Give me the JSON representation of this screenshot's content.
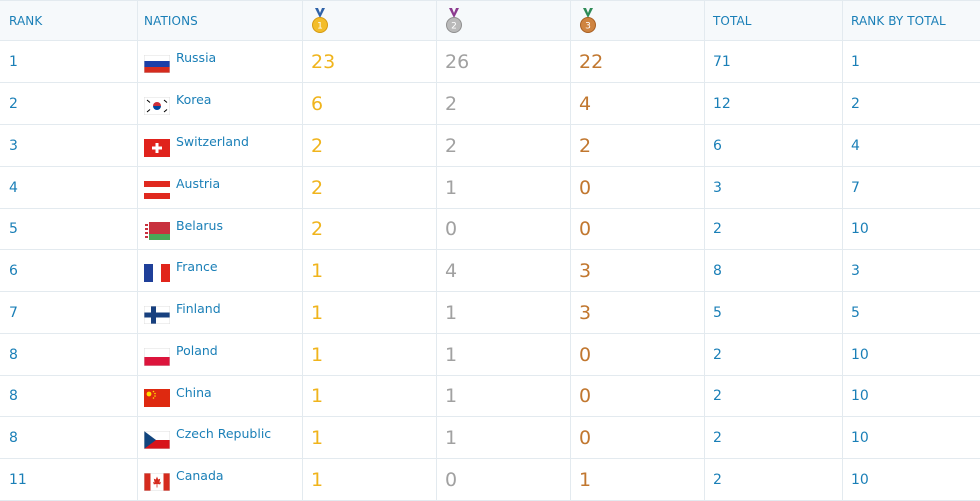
{
  "header": {
    "rank": "RANK",
    "nations": "NATIONS",
    "gold_icon": "gold-medal-icon",
    "gold_number": "1",
    "silver_icon": "silver-medal-icon",
    "silver_number": "2",
    "bronze_icon": "bronze-medal-icon",
    "bronze_number": "3",
    "total": "TOTAL",
    "rank_by_total": "RANK BY TOTAL"
  },
  "colors": {
    "link": "#1a7fb7",
    "gold": "#f0b41c",
    "silver": "#a1a1a1",
    "bronze": "#c1772f",
    "grid": "#e3eaef"
  },
  "rows": [
    {
      "rank": "1",
      "nation": "Russia",
      "flag": "russia-flag-icon",
      "gold": "23",
      "silver": "26",
      "bronze": "22",
      "total": "71",
      "rank_total": "1"
    },
    {
      "rank": "2",
      "nation": "Korea",
      "flag": "korea-flag-icon",
      "gold": "6",
      "silver": "2",
      "bronze": "4",
      "total": "12",
      "rank_total": "2"
    },
    {
      "rank": "3",
      "nation": "Switzerland",
      "flag": "switzerland-flag-icon",
      "gold": "2",
      "silver": "2",
      "bronze": "2",
      "total": "6",
      "rank_total": "4"
    },
    {
      "rank": "4",
      "nation": "Austria",
      "flag": "austria-flag-icon",
      "gold": "2",
      "silver": "1",
      "bronze": "0",
      "total": "3",
      "rank_total": "7"
    },
    {
      "rank": "5",
      "nation": "Belarus",
      "flag": "belarus-flag-icon",
      "gold": "2",
      "silver": "0",
      "bronze": "0",
      "total": "2",
      "rank_total": "10"
    },
    {
      "rank": "6",
      "nation": "France",
      "flag": "france-flag-icon",
      "gold": "1",
      "silver": "4",
      "bronze": "3",
      "total": "8",
      "rank_total": "3"
    },
    {
      "rank": "7",
      "nation": "Finland",
      "flag": "finland-flag-icon",
      "gold": "1",
      "silver": "1",
      "bronze": "3",
      "total": "5",
      "rank_total": "5"
    },
    {
      "rank": "8",
      "nation": "Poland",
      "flag": "poland-flag-icon",
      "gold": "1",
      "silver": "1",
      "bronze": "0",
      "total": "2",
      "rank_total": "10"
    },
    {
      "rank": "8",
      "nation": "China",
      "flag": "china-flag-icon",
      "gold": "1",
      "silver": "1",
      "bronze": "0",
      "total": "2",
      "rank_total": "10"
    },
    {
      "rank": "8",
      "nation": "Czech Republic",
      "flag": "czech-flag-icon",
      "gold": "1",
      "silver": "1",
      "bronze": "0",
      "total": "2",
      "rank_total": "10"
    },
    {
      "rank": "11",
      "nation": "Canada",
      "flag": "canada-flag-icon",
      "gold": "1",
      "silver": "0",
      "bronze": "1",
      "total": "2",
      "rank_total": "10"
    }
  ]
}
